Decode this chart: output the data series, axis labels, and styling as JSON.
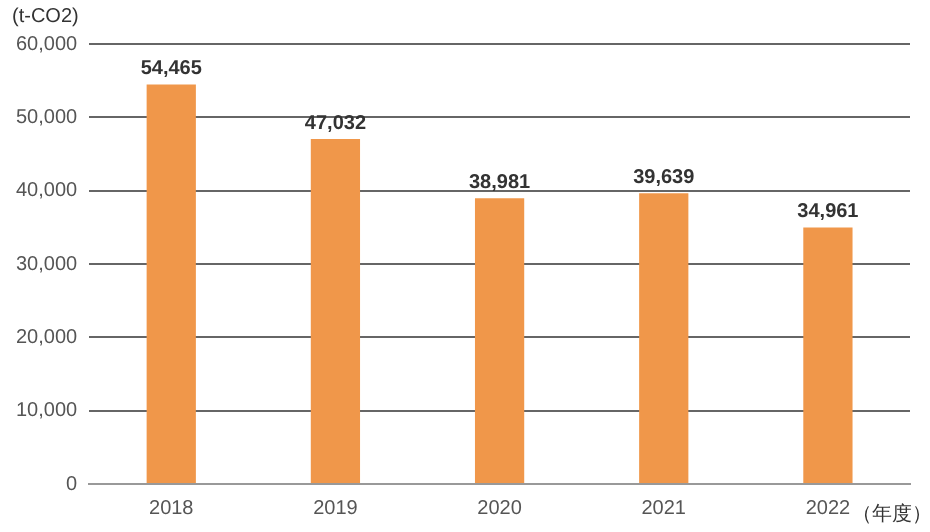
{
  "chart_data": {
    "type": "bar",
    "ylabel": "(t-CO2)",
    "xlabel": "（年度）",
    "categories": [
      "2018",
      "2019",
      "2020",
      "2021",
      "2022"
    ],
    "values": [
      54465,
      47032,
      38981,
      39639,
      34961
    ],
    "value_labels": [
      "54,465",
      "47,032",
      "38,981",
      "39,639",
      "34,961"
    ],
    "color": "#f0974a",
    "ylim": [
      0,
      60000
    ],
    "yticks": [
      {
        "value": 0,
        "label": "0"
      },
      {
        "value": 10000,
        "label": "10,000"
      },
      {
        "value": 20000,
        "label": "20,000"
      },
      {
        "value": 30000,
        "label": "30,000"
      },
      {
        "value": 40000,
        "label": "40,000"
      },
      {
        "value": 50000,
        "label": "50,000"
      },
      {
        "value": 60000,
        "label": "60,000"
      }
    ],
    "grid": "y",
    "legend": false
  }
}
